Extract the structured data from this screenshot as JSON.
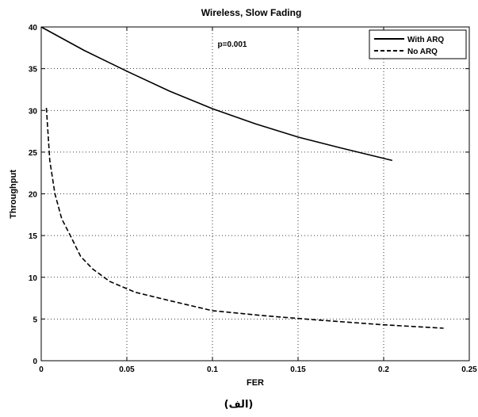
{
  "chart_data": {
    "type": "line",
    "title": "Wireless, Slow Fading",
    "xlabel": "FER",
    "ylabel": "Throughput",
    "xlim": [
      0,
      0.25
    ],
    "ylim": [
      0,
      40
    ],
    "xticks": [
      "0",
      "0.05",
      "0.1",
      "0.15",
      "0.2",
      "0.25"
    ],
    "yticks": [
      "0",
      "5",
      "10",
      "15",
      "20",
      "25",
      "30",
      "35",
      "40"
    ],
    "grid": true,
    "legend_position": "top-right",
    "annotation": "p=0.001",
    "series": [
      {
        "name": "With ARQ",
        "style": "solid",
        "x": [
          0,
          0.025,
          0.05,
          0.075,
          0.1,
          0.125,
          0.15,
          0.175,
          0.205
        ],
        "y": [
          40,
          37.2,
          34.7,
          32.3,
          30.2,
          28.4,
          26.8,
          25.5,
          24.0
        ]
      },
      {
        "name": "No ARQ",
        "style": "dashed",
        "x": [
          0.003,
          0.005,
          0.008,
          0.012,
          0.017,
          0.023,
          0.03,
          0.04,
          0.055,
          0.075,
          0.1,
          0.13,
          0.16,
          0.2,
          0.235
        ],
        "y": [
          30.3,
          24,
          20,
          17,
          15,
          12.5,
          11,
          9.5,
          8.2,
          7.2,
          6.0,
          5.4,
          4.9,
          4.3,
          3.9
        ]
      }
    ]
  },
  "caption": "(الف)"
}
